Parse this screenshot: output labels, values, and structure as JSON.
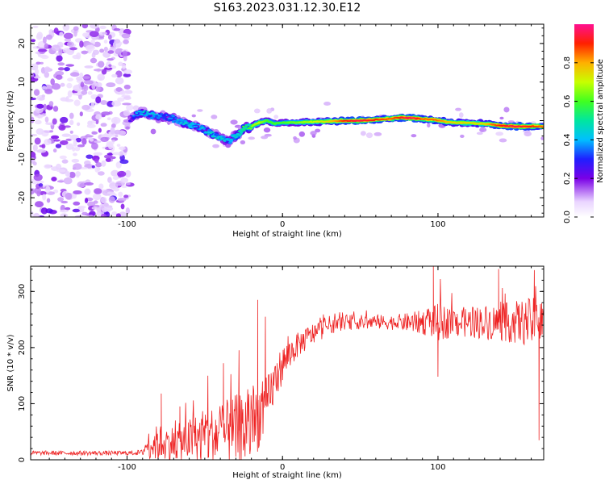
{
  "title": "S163.2023.031.12.30.E12",
  "chart_data": [
    {
      "type": "heatmap",
      "panel": "spectrogram",
      "xlabel": "Height of straight line (km)",
      "ylabel": "Frequency (Hz)",
      "xlim": [
        -162,
        168
      ],
      "ylim": [
        -25,
        25
      ],
      "x_ticks": [
        -100,
        0,
        100
      ],
      "y_ticks": [
        -20,
        -10,
        0,
        10,
        20
      ],
      "colorbar": {
        "label": "Normalized spectral amplitude",
        "ticks": [
          "0.0",
          "0.2",
          "0.4",
          "0.6",
          "0.8"
        ],
        "range": [
          0,
          1
        ],
        "stops": [
          {
            "v": 0.0,
            "c": "#ffffff"
          },
          {
            "v": 0.08,
            "c": "#e9d4ff"
          },
          {
            "v": 0.2,
            "c": "#7a00e6"
          },
          {
            "v": 0.3,
            "c": "#1f1fff"
          },
          {
            "v": 0.4,
            "c": "#00bfff"
          },
          {
            "v": 0.5,
            "c": "#00e6a0"
          },
          {
            "v": 0.6,
            "c": "#40ff20"
          },
          {
            "v": 0.7,
            "c": "#c8ff00"
          },
          {
            "v": 0.8,
            "c": "#ffb000"
          },
          {
            "v": 0.9,
            "c": "#ff2000"
          },
          {
            "v": 1.0,
            "c": "#ff1090"
          }
        ]
      },
      "noise_region_x": [
        -162,
        -98
      ],
      "trace": {
        "x": [
          -98,
          -95,
          -90,
          -85,
          -80,
          -75,
          -70,
          -65,
          -60,
          -55,
          -50,
          -45,
          -40,
          -35,
          -32,
          -28,
          -25,
          -20,
          -15,
          -10,
          -5,
          0,
          10,
          20,
          30,
          40,
          50,
          60,
          70,
          75,
          80,
          85,
          90,
          95,
          100,
          105,
          110,
          120,
          130,
          135,
          140,
          150,
          160,
          168
        ],
        "freq": [
          0.3,
          1.5,
          2.0,
          1.5,
          1.0,
          1.0,
          0.5,
          -0.5,
          -1.0,
          -1.5,
          -2.5,
          -3.5,
          -4.5,
          -5.5,
          -4.5,
          -3.5,
          -2.0,
          -1.5,
          -0.5,
          0.0,
          -0.8,
          -0.5,
          -0.5,
          -0.3,
          -0.2,
          0.0,
          0.0,
          0.2,
          0.5,
          0.8,
          0.7,
          0.6,
          0.4,
          0.3,
          0.1,
          -0.3,
          -0.5,
          -0.6,
          -0.8,
          -1.0,
          -1.3,
          -1.5,
          -1.5,
          -1.5
        ],
        "amplitude": [
          0.3,
          0.4,
          0.5,
          0.45,
          0.45,
          0.4,
          0.45,
          0.45,
          0.5,
          0.45,
          0.5,
          0.5,
          0.5,
          0.45,
          0.5,
          0.55,
          0.6,
          0.65,
          0.7,
          0.6,
          0.6,
          0.6,
          0.65,
          0.7,
          0.75,
          0.9,
          0.95,
          0.9,
          0.85,
          0.9,
          0.95,
          0.95,
          0.85,
          0.85,
          0.85,
          0.8,
          0.75,
          0.75,
          0.75,
          0.85,
          0.9,
          0.95,
          0.9,
          0.85
        ]
      }
    },
    {
      "type": "line",
      "panel": "snr",
      "xlabel": "Height of straight line (km)",
      "ylabel": "SNR (10 * v/v)",
      "xlim": [
        -162,
        168
      ],
      "ylim": [
        0,
        345
      ],
      "x_ticks": [
        -100,
        0,
        100
      ],
      "y_ticks": [
        0,
        100,
        200,
        300
      ],
      "series": [
        {
          "color": "#ee2222",
          "envelope": {
            "x": [
              -162,
              -140,
              -120,
              -100,
              -90,
              -88,
              -80,
              -70,
              -60,
              -50,
              -40,
              -30,
              -25,
              -20,
              -15,
              -10,
              -5,
              0,
              5,
              10,
              20,
              30,
              40,
              50,
              60,
              70,
              80,
              90,
              100,
              110,
              120,
              130,
              140,
              150,
              160,
              168
            ],
            "base": [
              12,
              12,
              12,
              12,
              13,
              25,
              30,
              30,
              35,
              40,
              45,
              50,
              55,
              60,
              80,
              100,
              140,
              170,
              190,
              205,
              225,
              240,
              245,
              245,
              245,
              245,
              245,
              245,
              245,
              245,
              245,
              245,
              245,
              245,
              245,
              245
            ],
            "spread": [
              4,
              4,
              4,
              4,
              5,
              20,
              30,
              28,
              35,
              45,
              50,
              60,
              65,
              60,
              55,
              45,
              35,
              30,
              25,
              20,
              18,
              15,
              12,
              12,
              12,
              12,
              15,
              20,
              30,
              25,
              25,
              28,
              30,
              35,
              40,
              40
            ]
          },
          "spikes": [
            {
              "x": -78,
              "y": 118
            },
            {
              "x": -66,
              "y": 95
            },
            {
              "x": -48,
              "y": 150
            },
            {
              "x": -38,
              "y": 172
            },
            {
              "x": -28,
              "y": 195
            },
            {
              "x": -16,
              "y": 285
            },
            {
              "x": -11,
              "y": 255
            },
            {
              "x": 97,
              "y": 345
            },
            {
              "x": 100,
              "y": 148
            },
            {
              "x": 139,
              "y": 340
            },
            {
              "x": 162,
              "y": 338
            },
            {
              "x": 165,
              "y": 35
            }
          ]
        }
      ]
    }
  ]
}
